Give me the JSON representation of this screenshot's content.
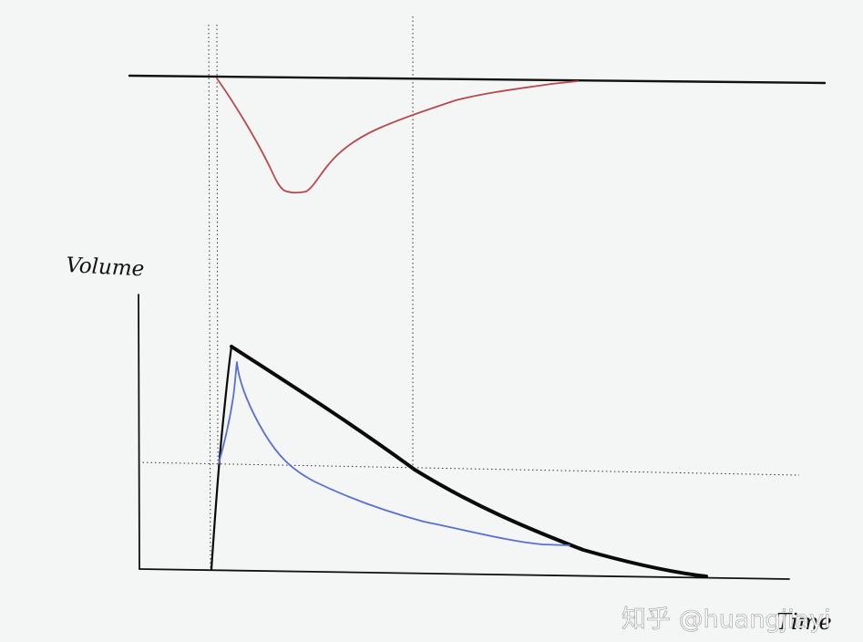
{
  "diagram": {
    "y_axis_label": "Volume",
    "x_axis_label": "Time",
    "watermark": "知乎 @huangjiayi"
  },
  "colors": {
    "background": "#f4f5f5",
    "axes": "#111111",
    "red_curve": "#b84a4f",
    "blue_curve": "#5a6fd4",
    "black_curve": "#0a0a0a",
    "guide_lines": "#333333"
  }
}
